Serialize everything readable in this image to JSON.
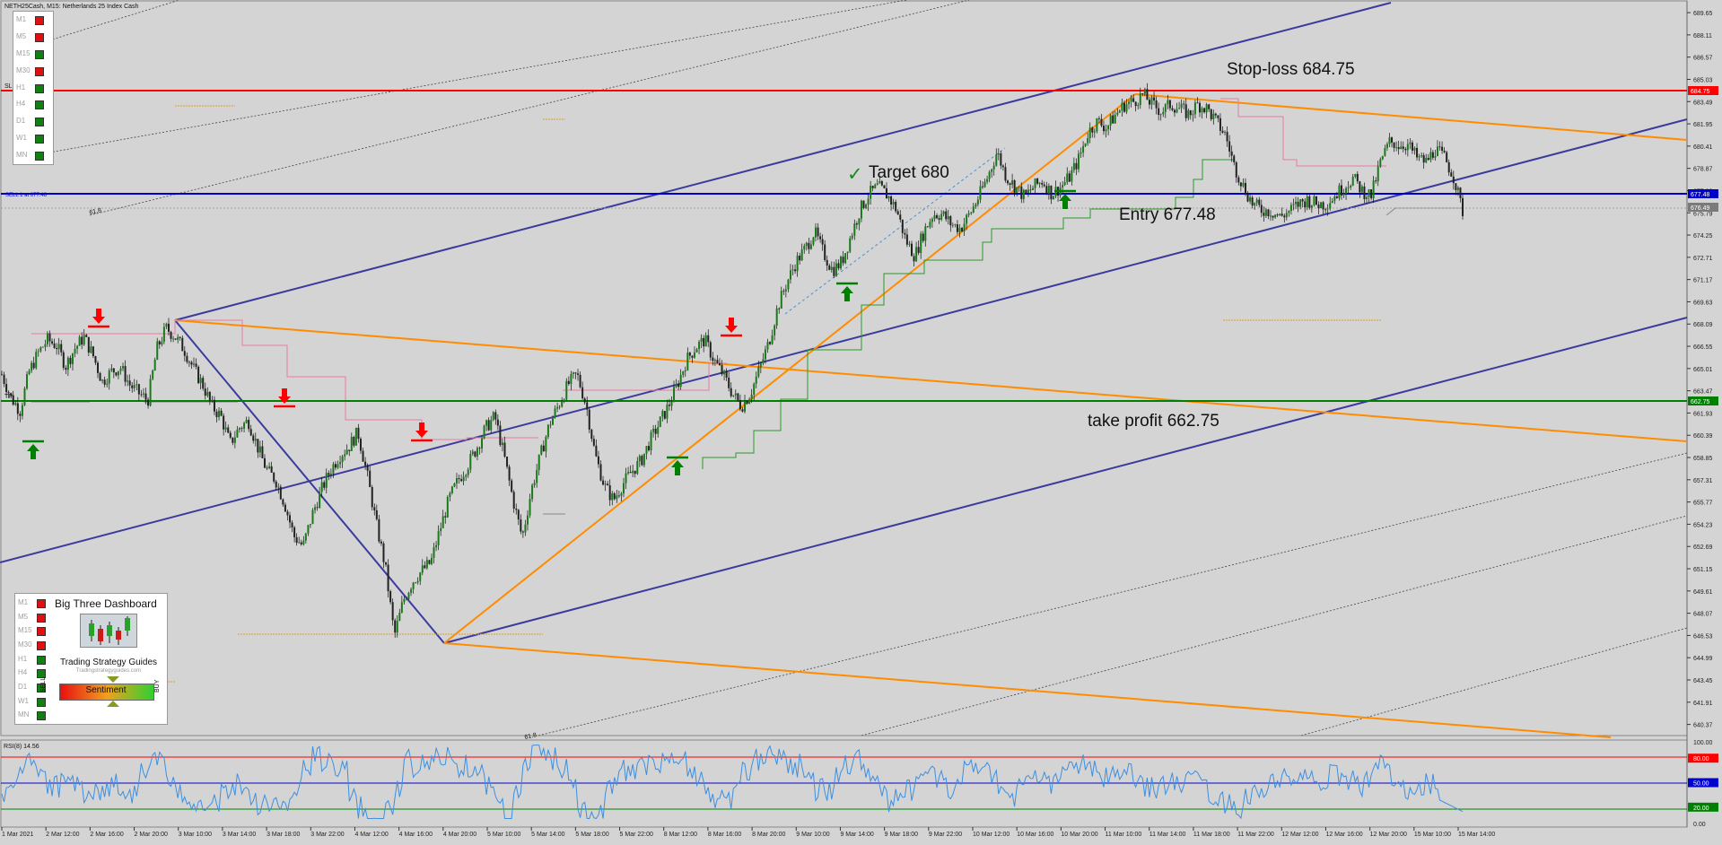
{
  "header": {
    "title": "NETH25Cash, M15:  Netherlands 25 Index Cash"
  },
  "colors": {
    "background": "#d4d4d4",
    "up_candle": "#1a7a1a",
    "down_candle": "#222222",
    "channel": "#3b3b9e",
    "trend": "#ff8c00",
    "stop_loss": "#ff0000",
    "entry": "#0000cc",
    "take_profit": "#008000",
    "rsi": "#3d8fe0"
  },
  "timeframes": {
    "top": [
      {
        "label": "M1",
        "status": "red"
      },
      {
        "label": "M5",
        "status": "red"
      },
      {
        "label": "M15",
        "status": "green"
      },
      {
        "label": "M30",
        "status": "red"
      },
      {
        "label": "H1",
        "status": "green"
      },
      {
        "label": "H4",
        "status": "green"
      },
      {
        "label": "D1",
        "status": "green"
      },
      {
        "label": "W1",
        "status": "green"
      },
      {
        "label": "MN",
        "status": "green"
      }
    ],
    "bottom": [
      {
        "label": "M1",
        "status": "red"
      },
      {
        "label": "M5",
        "status": "red"
      },
      {
        "label": "M15",
        "status": "red"
      },
      {
        "label": "M30",
        "status": "red"
      },
      {
        "label": "H1",
        "status": "green"
      },
      {
        "label": "H4",
        "status": "green"
      },
      {
        "label": "D1",
        "status": "green"
      },
      {
        "label": "W1",
        "status": "green"
      },
      {
        "label": "MN",
        "status": "green"
      }
    ]
  },
  "dashboard": {
    "title": "Big Three Dashboard",
    "brand": "Trading Strategy Guides",
    "url": "Tradingstrategyguides.com",
    "sentiment": "Sentiment",
    "sell": "SELL",
    "buy": "BUY"
  },
  "annotations": {
    "stop_loss": "Stop-loss 684.75",
    "target": "Target 680",
    "check": "✓",
    "entry": "Entry 677.48",
    "take_profit": "take profit 662.75"
  },
  "small_labels": {
    "sl": "SL",
    "tp": "TP",
    "fib_top": "61.8",
    "fib_bottom": "61.8",
    "entry_tag": "SELL 1 at 677.48"
  },
  "price_badges": {
    "stop_loss": "684.75",
    "entry": "677.48",
    "current": "676.49",
    "take_profit": "662.75"
  },
  "chart_data": {
    "type": "line",
    "title": "NETH25Cash, M15:  Netherlands 25 Index Cash",
    "price_axis": {
      "ticks": [
        "689.65",
        "688.11",
        "686.57",
        "685.03",
        "683.49",
        "681.95",
        "680.41",
        "678.87",
        "677.33",
        "675.79",
        "674.25",
        "672.71",
        "671.17",
        "669.63",
        "668.09",
        "666.55",
        "665.01",
        "663.47",
        "661.93",
        "660.39",
        "658.85",
        "657.31",
        "655.77",
        "654.23",
        "652.69",
        "651.15",
        "649.61",
        "648.07",
        "646.53",
        "644.99",
        "643.45",
        "641.91",
        "640.37"
      ],
      "range": [
        639.6,
        690.4
      ]
    },
    "time_axis": [
      "1 Mar 2021",
      "2 Mar 12:00",
      "2 Mar 16:00",
      "2 Mar 20:00",
      "3 Mar 10:00",
      "3 Mar 14:00",
      "3 Mar 18:00",
      "3 Mar 22:00",
      "4 Mar 12:00",
      "4 Mar 16:00",
      "4 Mar 20:00",
      "5 Mar 10:00",
      "5 Mar 14:00",
      "5 Mar 18:00",
      "5 Mar 22:00",
      "8 Mar 12:00",
      "8 Mar 16:00",
      "8 Mar 20:00",
      "9 Mar 10:00",
      "9 Mar 14:00",
      "9 Mar 18:00",
      "9 Mar 22:00",
      "10 Mar 12:00",
      "10 Mar 16:00",
      "10 Mar 20:00",
      "11 Mar 10:00",
      "11 Mar 14:00",
      "11 Mar 18:00",
      "11 Mar 22:00",
      "12 Mar 12:00",
      "12 Mar 16:00",
      "12 Mar 20:00",
      "15 Mar 10:00",
      "15 Mar 14:00"
    ],
    "levels": [
      {
        "name": "Stop-loss",
        "value": 684.75
      },
      {
        "name": "Entry",
        "value": 677.48
      },
      {
        "name": "Take profit",
        "value": 662.75
      }
    ],
    "price_path": [
      [
        0,
        664.6
      ],
      [
        1,
        663.0
      ],
      [
        2,
        662.1
      ],
      [
        3,
        664.8
      ],
      [
        4,
        666.1
      ],
      [
        5,
        667.0
      ],
      [
        6,
        666.6
      ],
      [
        7,
        665.2
      ],
      [
        8,
        666.4
      ],
      [
        9,
        667.2
      ],
      [
        10,
        665.9
      ],
      [
        11,
        664.1
      ],
      [
        12,
        664.8
      ],
      [
        13,
        665.1
      ],
      [
        14,
        663.9
      ],
      [
        15,
        663.3
      ],
      [
        16,
        662.8
      ],
      [
        17,
        666.4
      ],
      [
        18,
        667.8
      ],
      [
        19,
        667.2
      ],
      [
        20,
        666.3
      ],
      [
        21,
        665.0
      ],
      [
        22,
        663.9
      ],
      [
        23,
        662.4
      ],
      [
        24,
        661.7
      ],
      [
        25,
        659.8
      ],
      [
        26,
        660.9
      ],
      [
        27,
        661.4
      ],
      [
        28,
        659.6
      ],
      [
        29,
        658.0
      ],
      [
        30,
        657.3
      ],
      [
        31,
        655.6
      ],
      [
        32,
        653.4
      ],
      [
        33,
        652.7
      ],
      [
        34,
        654.9
      ],
      [
        35,
        656.6
      ],
      [
        36,
        658.0
      ],
      [
        37,
        659.0
      ],
      [
        38,
        659.6
      ],
      [
        39,
        660.6
      ],
      [
        40,
        657.7
      ],
      [
        41,
        654.3
      ],
      [
        42,
        651.3
      ],
      [
        43,
        646.5
      ],
      [
        44,
        649.0
      ],
      [
        45,
        650.3
      ],
      [
        46,
        651.0
      ],
      [
        47,
        651.6
      ],
      [
        48,
        653.9
      ],
      [
        49,
        656.0
      ],
      [
        50,
        657.3
      ],
      [
        51,
        658.3
      ],
      [
        52,
        659.5
      ],
      [
        53,
        660.9
      ],
      [
        54,
        661.7
      ],
      [
        55,
        659.0
      ],
      [
        56,
        655.9
      ],
      [
        57,
        653.3
      ],
      [
        58,
        656.6
      ],
      [
        59,
        659.0
      ],
      [
        60,
        661.2
      ],
      [
        61,
        662.5
      ],
      [
        62,
        663.9
      ],
      [
        63,
        664.6
      ],
      [
        64,
        662.5
      ],
      [
        65,
        659.0
      ],
      [
        66,
        656.9
      ],
      [
        67,
        655.9
      ],
      [
        68,
        657.0
      ],
      [
        69,
        657.9
      ],
      [
        70,
        658.6
      ],
      [
        71,
        660.0
      ],
      [
        72,
        661.2
      ],
      [
        73,
        662.4
      ],
      [
        74,
        663.9
      ],
      [
        75,
        665.6
      ],
      [
        76,
        666.5
      ],
      [
        77,
        667.0
      ],
      [
        78,
        665.6
      ],
      [
        79,
        664.6
      ],
      [
        80,
        663.3
      ],
      [
        81,
        662.4
      ],
      [
        82,
        663.3
      ],
      [
        83,
        665.0
      ],
      [
        84,
        666.8
      ],
      [
        85,
        669.3
      ],
      [
        86,
        671.0
      ],
      [
        87,
        672.4
      ],
      [
        88,
        673.3
      ],
      [
        89,
        674.5
      ],
      [
        90,
        673.0
      ],
      [
        91,
        671.8
      ],
      [
        92,
        672.4
      ],
      [
        93,
        674.2
      ],
      [
        94,
        676.0
      ],
      [
        95,
        677.1
      ],
      [
        96,
        677.6
      ],
      [
        97,
        677.0
      ],
      [
        98,
        676.0
      ],
      [
        99,
        673.9
      ],
      [
        100,
        672.8
      ],
      [
        101,
        674.5
      ],
      [
        102,
        675.7
      ],
      [
        103,
        675.7
      ],
      [
        104,
        675.0
      ],
      [
        105,
        674.7
      ],
      [
        106,
        675.7
      ],
      [
        107,
        676.9
      ],
      [
        108,
        678.3
      ],
      [
        109,
        680.0
      ],
      [
        110,
        678.3
      ],
      [
        111,
        677.6
      ],
      [
        112,
        676.9
      ],
      [
        113,
        677.6
      ],
      [
        114,
        678.0
      ],
      [
        115,
        677.1
      ],
      [
        116,
        677.6
      ],
      [
        117,
        678.3
      ],
      [
        118,
        679.6
      ],
      [
        119,
        681.4
      ],
      [
        120,
        682.1
      ],
      [
        121,
        681.7
      ],
      [
        122,
        682.6
      ],
      [
        123,
        683.3
      ],
      [
        124,
        683.5
      ],
      [
        125,
        684.0
      ],
      [
        126,
        683.3
      ],
      [
        127,
        682.8
      ],
      [
        128,
        683.3
      ],
      [
        129,
        683.0
      ],
      [
        130,
        682.6
      ],
      [
        131,
        683.3
      ],
      [
        132,
        683.0
      ],
      [
        133,
        682.1
      ],
      [
        134,
        681.2
      ],
      [
        135,
        679.0
      ],
      [
        136,
        677.6
      ],
      [
        137,
        676.4
      ],
      [
        138,
        676.0
      ],
      [
        139,
        675.9
      ],
      [
        140,
        675.5
      ],
      [
        141,
        675.9
      ],
      [
        142,
        676.4
      ],
      [
        143,
        676.7
      ],
      [
        144,
        676.4
      ],
      [
        145,
        676.4
      ],
      [
        146,
        677.0
      ],
      [
        147,
        677.6
      ],
      [
        148,
        678.2
      ],
      [
        149,
        677.3
      ],
      [
        150,
        677.0
      ],
      [
        151,
        679.3
      ],
      [
        152,
        680.7
      ],
      [
        153,
        680.5
      ],
      [
        154,
        680.5
      ],
      [
        155,
        679.6
      ],
      [
        156,
        679.3
      ],
      [
        157,
        680.2
      ],
      [
        158,
        679.6
      ],
      [
        159,
        678.3
      ],
      [
        160,
        675.9
      ]
    ],
    "rsi": {
      "label": "RSI(8) 14.56",
      "ticks": [
        "100.00",
        "80.00",
        "50.00",
        "20.00",
        "0.00"
      ],
      "levels": [
        80,
        50,
        20
      ],
      "range": [
        0,
        100
      ]
    },
    "grid": false
  }
}
